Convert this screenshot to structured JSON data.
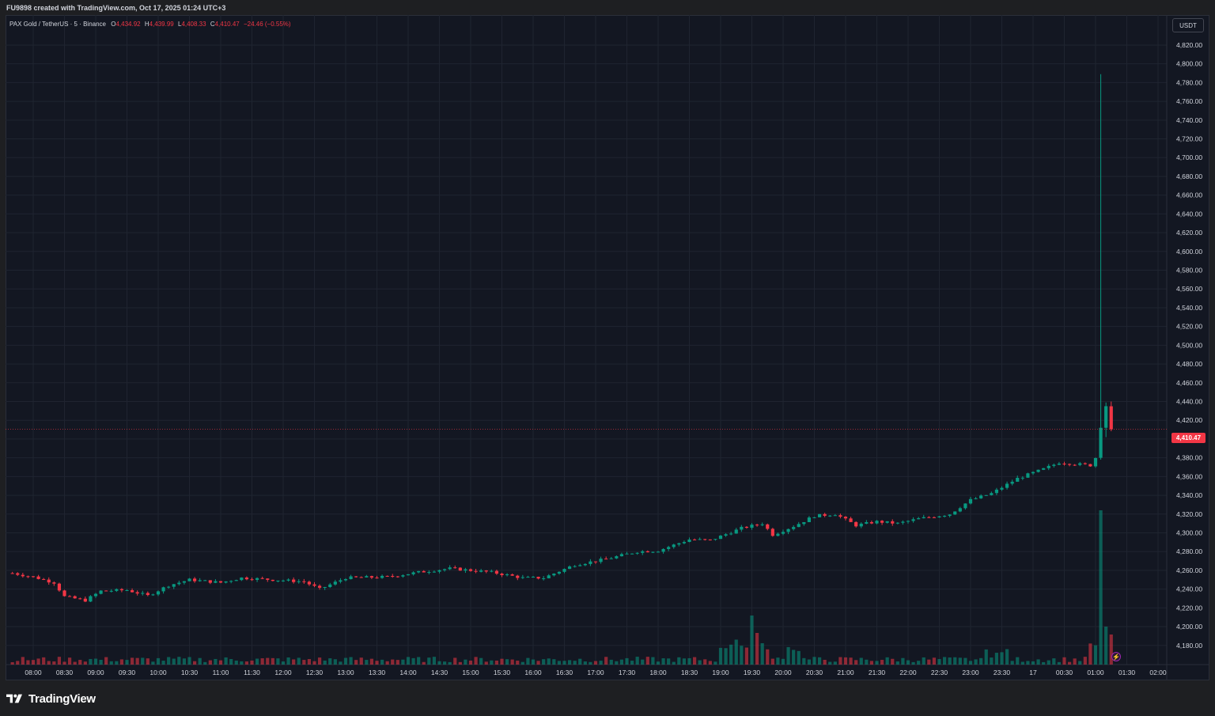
{
  "header": {
    "created_text": "FU9898 created with TradingView.com, Oct 17, 2025 01:24 UTC+3"
  },
  "legend": {
    "symbol": "PAX Gold / TetherUS · 5 · Binance",
    "o_label": "O",
    "o_value": "4,434.92",
    "h_label": "H",
    "h_value": "4,439.99",
    "l_label": "L",
    "l_value": "4,408.33",
    "c_label": "C",
    "c_value": "4,410.47",
    "change": "−24.46 (−0.55%)"
  },
  "currency_button": "USDT",
  "last_price_label": "4,410.47",
  "brand": {
    "name": "TradingView",
    "logo_icon": "tradingview-logo-icon"
  },
  "colors": {
    "background": "#131722",
    "up": "#089981",
    "down": "#f23645",
    "grid": "#1f2430",
    "text": "#d1d4dc"
  },
  "chart_data": {
    "type": "candlestick",
    "interval": "5m",
    "ylim": [
      4168,
      4836
    ],
    "y_ticks": [
      4180,
      4200,
      4220,
      4240,
      4260,
      4280,
      4300,
      4320,
      4340,
      4360,
      4380,
      4400,
      4420,
      4440,
      4460,
      4480,
      4500,
      4520,
      4540,
      4560,
      4580,
      4600,
      4620,
      4640,
      4660,
      4680,
      4700,
      4720,
      4740,
      4760,
      4780,
      4800,
      4820
    ],
    "y_tick_labels": [
      "4,180.00",
      "4,200.00",
      "4,220.00",
      "4,240.00",
      "4,260.00",
      "4,280.00",
      "4,300.00",
      "4,320.00",
      "4,340.00",
      "4,360.00",
      "4,380.00",
      "4,400.00",
      "4,420.00",
      "4,440.00",
      "4,460.00",
      "4,480.00",
      "4,500.00",
      "4,520.00",
      "4,540.00",
      "4,560.00",
      "4,580.00",
      "4,600.00",
      "4,620.00",
      "4,640.00",
      "4,660.00",
      "4,680.00",
      "4,700.00",
      "4,720.00",
      "4,740.00",
      "4,760.00",
      "4,780.00",
      "4,800.00",
      "4,820.00"
    ],
    "x_ticks": [
      "08:00",
      "08:30",
      "09:00",
      "09:30",
      "10:00",
      "10:30",
      "11:00",
      "11:30",
      "12:00",
      "12:30",
      "13:00",
      "13:30",
      "14:00",
      "14:30",
      "15:00",
      "15:30",
      "16:00",
      "16:30",
      "17:00",
      "17:30",
      "18:00",
      "18:30",
      "19:00",
      "19:30",
      "20:00",
      "20:30",
      "21:00",
      "21:30",
      "22:00",
      "22:30",
      "23:00",
      "23:30",
      "17",
      "00:30",
      "01:00",
      "01:30",
      "02:00"
    ],
    "last_price": 4410.47,
    "anchors": [
      {
        "t": "07:40",
        "p": 4257
      },
      {
        "t": "08:00",
        "p": 4253
      },
      {
        "t": "08:20",
        "p": 4247
      },
      {
        "t": "08:30",
        "p": 4232
      },
      {
        "t": "08:50",
        "p": 4228
      },
      {
        "t": "09:05",
        "p": 4238
      },
      {
        "t": "09:30",
        "p": 4239
      },
      {
        "t": "09:50",
        "p": 4233
      },
      {
        "t": "10:10",
        "p": 4244
      },
      {
        "t": "10:30",
        "p": 4250
      },
      {
        "t": "11:00",
        "p": 4247
      },
      {
        "t": "11:20",
        "p": 4252
      },
      {
        "t": "11:50",
        "p": 4250
      },
      {
        "t": "12:20",
        "p": 4248
      },
      {
        "t": "12:35",
        "p": 4240
      },
      {
        "t": "13:00",
        "p": 4252
      },
      {
        "t": "13:40",
        "p": 4253
      },
      {
        "t": "14:10",
        "p": 4258
      },
      {
        "t": "14:40",
        "p": 4262
      },
      {
        "t": "15:20",
        "p": 4258
      },
      {
        "t": "15:50",
        "p": 4252
      },
      {
        "t": "16:10",
        "p": 4252
      },
      {
        "t": "16:40",
        "p": 4266
      },
      {
        "t": "17:10",
        "p": 4272
      },
      {
        "t": "17:40",
        "p": 4280
      },
      {
        "t": "18:00",
        "p": 4281
      },
      {
        "t": "18:30",
        "p": 4293
      },
      {
        "t": "18:50",
        "p": 4292
      },
      {
        "t": "19:20",
        "p": 4305
      },
      {
        "t": "19:40",
        "p": 4310
      },
      {
        "t": "19:50",
        "p": 4298
      },
      {
        "t": "20:10",
        "p": 4307
      },
      {
        "t": "20:30",
        "p": 4318
      },
      {
        "t": "20:50",
        "p": 4320
      },
      {
        "t": "21:10",
        "p": 4308
      },
      {
        "t": "21:30",
        "p": 4312
      },
      {
        "t": "21:50",
        "p": 4310
      },
      {
        "t": "22:10",
        "p": 4315
      },
      {
        "t": "22:40",
        "p": 4320
      },
      {
        "t": "23:00",
        "p": 4335
      },
      {
        "t": "23:20",
        "p": 4342
      },
      {
        "t": "23:45",
        "p": 4358
      },
      {
        "t": "00:10",
        "p": 4368
      },
      {
        "t": "00:25",
        "p": 4375
      },
      {
        "t": "00:55",
        "p": 4372
      },
      {
        "t": "01:00",
        "p": 4380
      }
    ],
    "candles": [
      {
        "t": "01:05",
        "o": 4380,
        "h": 4789,
        "l": 4378,
        "c": 4412
      },
      {
        "t": "01:10",
        "o": 4412,
        "h": 4439,
        "l": 4402,
        "c": 4435
      },
      {
        "t": "01:15",
        "o": 4434.92,
        "h": 4439.99,
        "l": 4408.33,
        "c": 4410.47
      }
    ],
    "volume_note": "spike at 19:30 and at 01:05"
  }
}
